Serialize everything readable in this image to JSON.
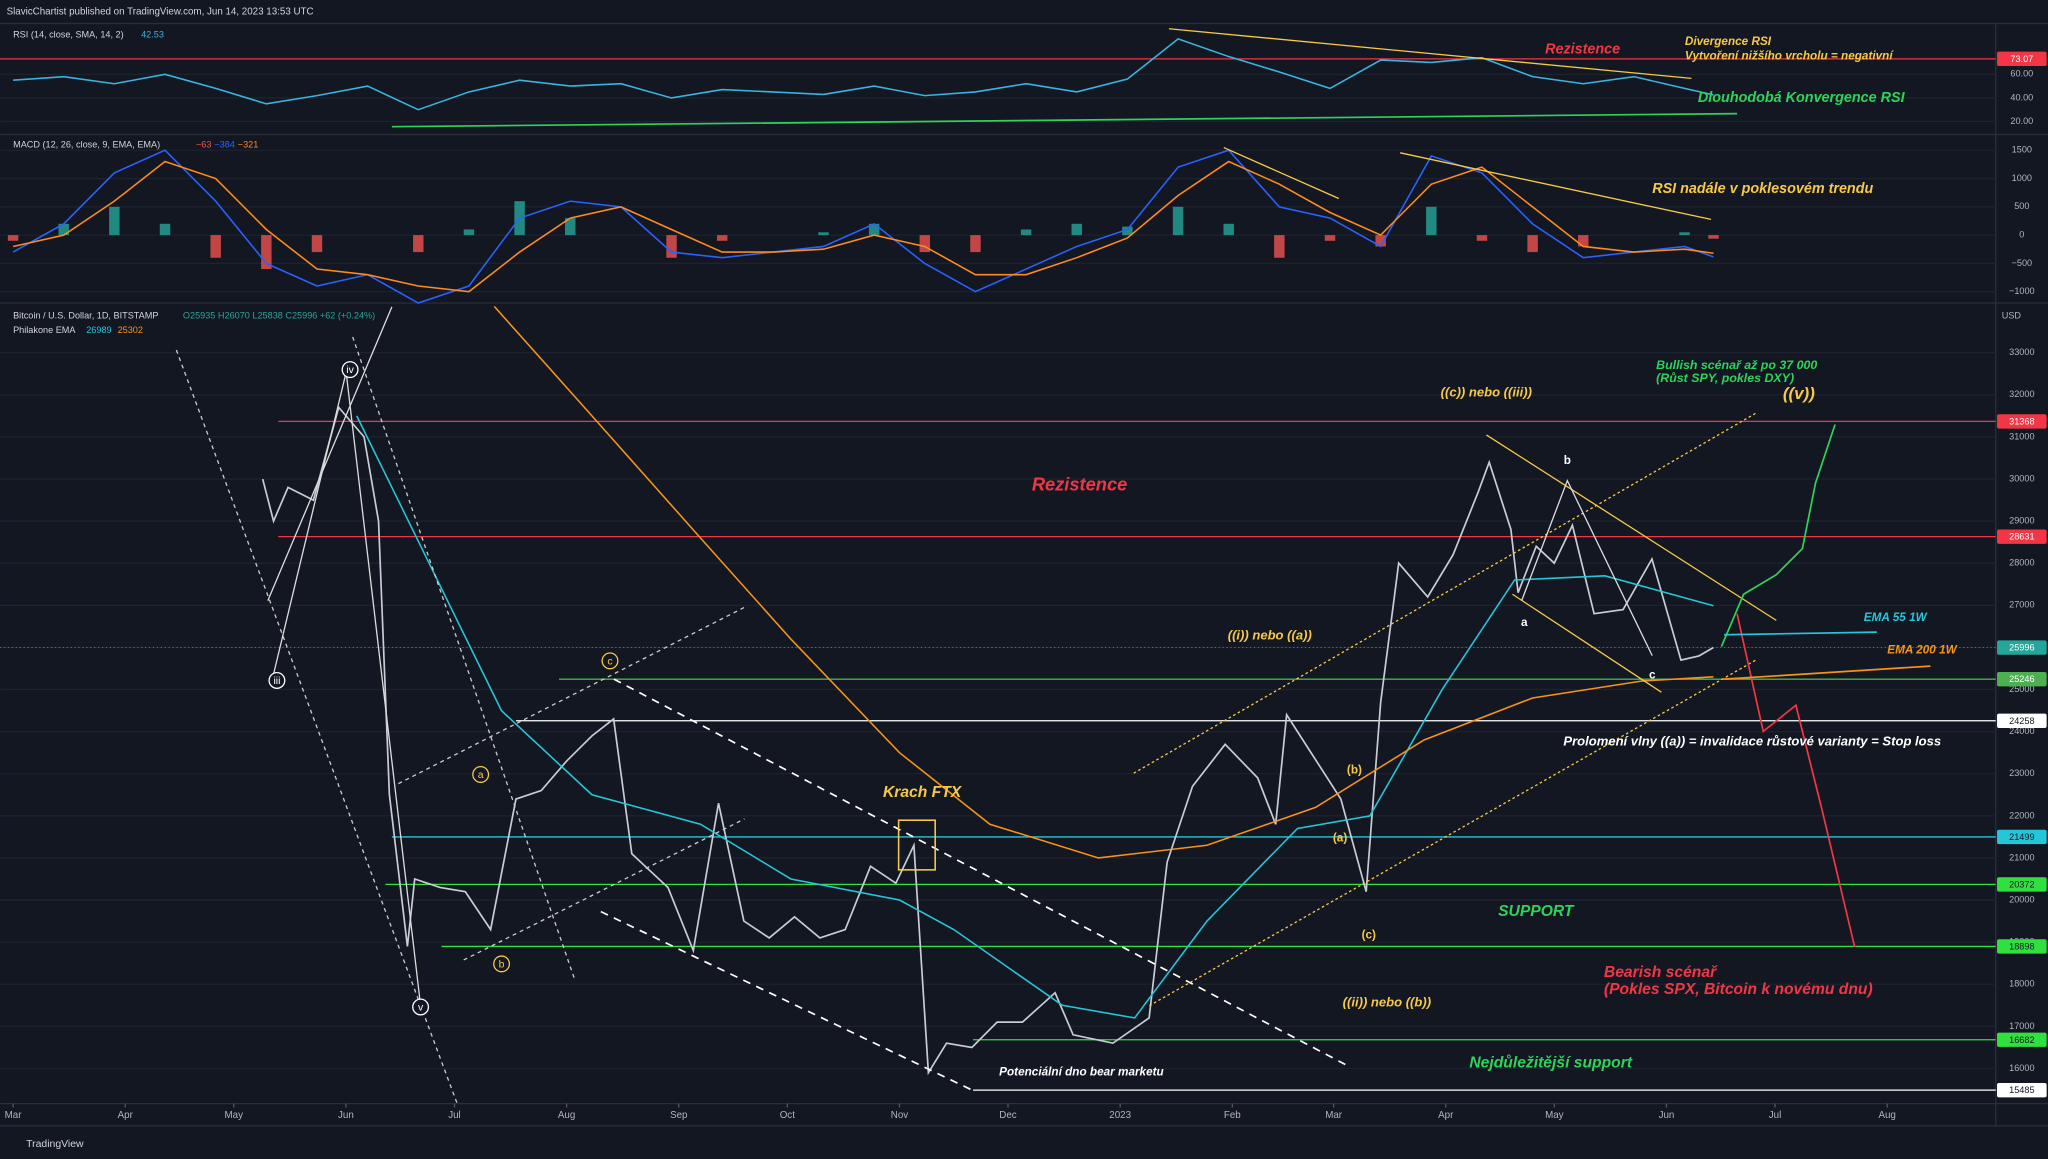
{
  "header": {
    "publisher": "SlavicChartist published on TradingView.com, Jun 14, 2023 13:53 UTC",
    "footer": "TradingView"
  },
  "chart_data": [
    {
      "type": "line",
      "title": "Bitcoin / U.S. Dollar, 1D, BITSTAMP",
      "ohlc": "O25935 H26070 L25838 C25996 +62 (+0.24%)",
      "indicator": "Philakone EMA",
      "indicator_values": [
        26989,
        25302
      ],
      "currency": "USD",
      "xlim": [
        -3.6,
        548
      ],
      "xticks": [
        {
          "value": 0,
          "label": "Mar"
        },
        {
          "value": 31,
          "label": "Apr"
        },
        {
          "value": 61,
          "label": "May"
        },
        {
          "value": 92,
          "label": "Jun"
        },
        {
          "value": 122,
          "label": "Jul"
        },
        {
          "value": 153,
          "label": "Aug"
        },
        {
          "value": 184,
          "label": "Sep"
        },
        {
          "value": 214,
          "label": "Oct"
        },
        {
          "value": 245,
          "label": "Nov"
        },
        {
          "value": 275,
          "label": "Dec"
        },
        {
          "value": 306,
          "label": "2023"
        },
        {
          "value": 337,
          "label": "Feb"
        },
        {
          "value": 365,
          "label": "Mar"
        },
        {
          "value": 396,
          "label": "Apr"
        },
        {
          "value": 426,
          "label": "May"
        },
        {
          "value": 457,
          "label": "Jun"
        },
        {
          "value": 487,
          "label": "Jul"
        },
        {
          "value": 518,
          "label": "Aug"
        }
      ],
      "ylim": [
        15165,
        34180
      ],
      "yticks": [
        16000,
        17000,
        18000,
        19000,
        20000,
        21000,
        22000,
        23000,
        24000,
        25000,
        26000,
        27000,
        28000,
        29000,
        30000,
        31000,
        32000,
        33000
      ],
      "levels": [
        {
          "value": 31368,
          "color": "#f23645"
        },
        {
          "value": 28631,
          "color": "#f23645"
        },
        {
          "value": 25996,
          "color": "#26a69a",
          "style": "dotted"
        },
        {
          "value": 25246,
          "color": "#4caf50"
        },
        {
          "value": 24258,
          "color": "#ffffff"
        },
        {
          "value": 21499,
          "color": "#26c6da"
        },
        {
          "value": 20372,
          "color": "#2fe03f"
        },
        {
          "value": 18898,
          "color": "#2fe03f"
        },
        {
          "value": 16682,
          "color": "#2fe03f"
        },
        {
          "value": 15485,
          "color": "#ffffff"
        }
      ],
      "series": [
        {
          "color": "#c8ccd6",
          "x": [
            69,
            72,
            76,
            83,
            90,
            97,
            101,
            104,
            109,
            111,
            118,
            125,
            132,
            139,
            146,
            153,
            160,
            166,
            171,
            181,
            188,
            195,
            202,
            209,
            216,
            223,
            230,
            237,
            244,
            249,
            253,
            258,
            265,
            272,
            279,
            288,
            293,
            304,
            314,
            319,
            326,
            335,
            344,
            349,
            352,
            361,
            367,
            374,
            378,
            383,
            391,
            398,
            405,
            408,
            414,
            416,
            421,
            426,
            431,
            437,
            445,
            453,
            461,
            466,
            470
          ],
          "values": [
            30000,
            29000,
            29800,
            29500,
            31700,
            31000,
            29000,
            22500,
            18900,
            20500,
            20300,
            20200,
            19300,
            22400,
            22600,
            23300,
            23900,
            24300,
            21100,
            20300,
            18800,
            22300,
            19500,
            19100,
            19600,
            19100,
            19300,
            20800,
            20400,
            21300,
            15900,
            16600,
            16500,
            17100,
            17100,
            17800,
            16800,
            16600,
            17200,
            20900,
            22700,
            23700,
            22900,
            21800,
            24400,
            23200,
            22400,
            20200,
            24700,
            28000,
            27200,
            28200,
            29700,
            30400,
            28800,
            27300,
            28400,
            28000,
            28900,
            26800,
            26900,
            28100,
            25700,
            25800,
            25996
          ]
        },
        {
          "name": "EMA 55 1W",
          "color": "#26c6da",
          "x": [
            95,
            115,
            135,
            160,
            190,
            215,
            245,
            260,
            290,
            310,
            330,
            355,
            375,
            395,
            415,
            440,
            470
          ],
          "values": [
            31500,
            28000,
            24500,
            22500,
            21800,
            20500,
            20000,
            19300,
            17500,
            17200,
            19500,
            21700,
            22000,
            25000,
            27600,
            27700,
            26989
          ]
        },
        {
          "name": "EMA 200 1W",
          "color": "#f7931a",
          "x": [
            133,
            160,
            190,
            215,
            245,
            270,
            300,
            330,
            360,
            390,
            420,
            450,
            470
          ],
          "values": [
            34100,
            31500,
            28600,
            26200,
            23500,
            21800,
            21000,
            21300,
            22200,
            23800,
            24800,
            25200,
            25302
          ]
        }
      ],
      "annotations": [
        {
          "text": "Rezistence",
          "color": "#f23645"
        },
        {
          "text": "Krach FTX",
          "color": "#f7c948"
        },
        {
          "text": "Potenciální dno bear marketu",
          "color": "#ffffff"
        },
        {
          "text": "SUPPORT",
          "color": "#2fd35a"
        },
        {
          "text": "Nejdůležitější support",
          "color": "#2fd35a"
        },
        {
          "text": "Bearish scénař",
          "color": "#f23645"
        },
        {
          "text": "(Pokles SPX, Bitcoin k novému dnu)",
          "color": "#f23645"
        },
        {
          "text": "((ii)) nebo ((b))",
          "color": "#f7c948"
        },
        {
          "text": "Prolomení vlny ((a)) = invalidace růstové varianty = Stop loss",
          "color": "#ffffff"
        },
        {
          "text": "((i)) nebo ((a))",
          "color": "#f7c948"
        },
        {
          "text": "((c)) nebo ((iii))",
          "color": "#f7c948"
        },
        {
          "text": "Bullish scénař až po 37 000",
          "color": "#2fd35a"
        },
        {
          "text": "(Růst SPY, pokles DXY)",
          "color": "#2fd35a"
        },
        {
          "text": "((v))",
          "color": "#f7c948"
        },
        {
          "text": "iii",
          "color": "#ffffff"
        },
        {
          "text": "iv",
          "color": "#ffffff"
        },
        {
          "text": "v",
          "color": "#ffffff"
        },
        {
          "text": "a",
          "color": "#f7c948"
        },
        {
          "text": "b",
          "color": "#f7c948"
        },
        {
          "text": "c",
          "color": "#f7c948"
        },
        {
          "text": "(a)",
          "color": "#f7c948"
        },
        {
          "text": "(b)",
          "color": "#f7c948"
        },
        {
          "text": "(c)",
          "color": "#f7c948"
        },
        {
          "text": "a",
          "color": "#ffffff"
        },
        {
          "text": "b",
          "color": "#ffffff"
        },
        {
          "text": "c",
          "color": "#ffffff"
        }
      ]
    },
    {
      "type": "line",
      "title": "RSI (14, close, SMA, 14, 2)",
      "last": 42.53,
      "ylim": [
        9,
        103
      ],
      "yticks": [
        {
          "value": 20,
          "label": "20.00"
        },
        {
          "value": 40,
          "label": "40.00"
        },
        {
          "value": 60,
          "label": "60.00"
        }
      ],
      "levels": [
        {
          "value": 73.07,
          "color": "#f23645"
        }
      ],
      "series": [
        {
          "color": "#3bb3e0",
          "x": [
            0,
            14,
            28,
            42,
            56,
            70,
            84,
            98,
            112,
            126,
            140,
            154,
            168,
            182,
            196,
            210,
            224,
            238,
            252,
            266,
            280,
            294,
            308,
            322,
            336,
            350,
            364,
            378,
            392,
            406,
            420,
            434,
            448,
            462,
            470
          ],
          "values": [
            55,
            58,
            52,
            60,
            48,
            35,
            42,
            50,
            30,
            45,
            55,
            50,
            52,
            40,
            47,
            45,
            43,
            50,
            42,
            45,
            52,
            45,
            56,
            90,
            75,
            62,
            48,
            72,
            70,
            74,
            58,
            52,
            58,
            48,
            42.53
          ]
        }
      ],
      "annotations": [
        {
          "text": "Rezistence",
          "color": "#f23645"
        },
        {
          "text": "Divergence RSI",
          "color": "#f7c948"
        },
        {
          "text": "Vytvoření nižšího vrcholu = negativní",
          "color": "#f7c948"
        },
        {
          "text": "Dlouhodobá Konvergence RSI",
          "color": "#2fd35a"
        }
      ]
    },
    {
      "type": "line",
      "title": "MACD (12, 26, close, 9, EMA, EMA)",
      "legend_labels": [
        "−63",
        "−384",
        "−321"
      ],
      "ylim": [
        -1200,
        1778
      ],
      "yticks": [
        {
          "value": -1000,
          "label": "−1000"
        },
        {
          "value": -500,
          "label": "−500"
        },
        0,
        500,
        1000,
        1500
      ],
      "x": [
        0,
        14,
        28,
        42,
        56,
        70,
        84,
        98,
        112,
        126,
        140,
        154,
        168,
        182,
        196,
        210,
        224,
        238,
        252,
        266,
        280,
        294,
        308,
        322,
        336,
        350,
        364,
        378,
        392,
        406,
        420,
        434,
        448,
        462,
        470
      ],
      "series": [
        {
          "type": "bar",
          "color": "#26a69a",
          "negative_color": "#ef5350",
          "values": [
            -100,
            200,
            500,
            200,
            -400,
            -600,
            -300,
            0,
            -300,
            100,
            600,
            300,
            0,
            -400,
            -100,
            0,
            50,
            200,
            -300,
            -300,
            100,
            200,
            150,
            500,
            200,
            -400,
            -100,
            -200,
            500,
            -100,
            -300,
            -200,
            0,
            50,
            -63
          ]
        },
        {
          "type": "line",
          "color": "#2962ff",
          "values": [
            -300,
            200,
            1100,
            1500,
            600,
            -500,
            -900,
            -700,
            -1200,
            -900,
            300,
            600,
            500,
            -300,
            -400,
            -300,
            -200,
            200,
            -500,
            -1000,
            -600,
            -200,
            100,
            1200,
            1500,
            500,
            300,
            -200,
            1400,
            1100,
            200,
            -400,
            -300,
            -200,
            -384
          ]
        },
        {
          "type": "line",
          "color": "#ff8a1f",
          "values": [
            -200,
            0,
            600,
            1300,
            1000,
            100,
            -600,
            -700,
            -900,
            -1000,
            -300,
            300,
            500,
            100,
            -300,
            -300,
            -250,
            0,
            -200,
            -700,
            -700,
            -400,
            -50,
            700,
            1300,
            900,
            400,
            0,
            900,
            1200,
            500,
            -200,
            -300,
            -250,
            -321
          ]
        }
      ],
      "annotations": [
        {
          "text": "RSI nadále v poklesovém trendu",
          "color": "#f7c948"
        }
      ]
    }
  ]
}
